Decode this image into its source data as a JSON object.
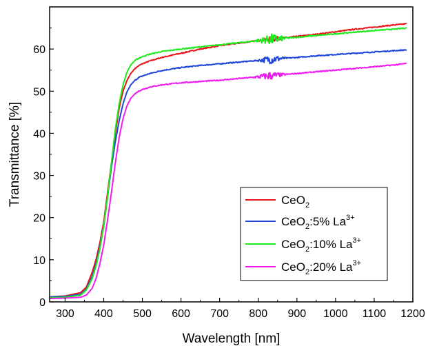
{
  "chart_data": {
    "type": "line",
    "title": "",
    "xlabel": "Wavelength [nm]",
    "ylabel": "Transmittance [%]",
    "xlim": [
      260,
      1200
    ],
    "ylim": [
      0,
      70
    ],
    "x_ticks": [
      300,
      400,
      500,
      600,
      700,
      800,
      900,
      1000,
      1100,
      1200
    ],
    "y_ticks": [
      0,
      10,
      20,
      30,
      40,
      50,
      60
    ],
    "grid": false,
    "legend_position": "bottom-right",
    "series": [
      {
        "name": "CeO2",
        "label_main": "CeO",
        "label_sub": "2",
        "label_rest": "",
        "label_sup": "",
        "color": "#e8161b",
        "noise": {
          "center": 835,
          "halfwidth": 35,
          "amplitude": 0.6
        },
        "points": [
          [
            260,
            1.2
          ],
          [
            300,
            1.4
          ],
          [
            340,
            2.2
          ],
          [
            355,
            3.5
          ],
          [
            370,
            7
          ],
          [
            380,
            10
          ],
          [
            390,
            14
          ],
          [
            400,
            19
          ],
          [
            410,
            26
          ],
          [
            420,
            33
          ],
          [
            430,
            40
          ],
          [
            440,
            46
          ],
          [
            450,
            50
          ],
          [
            460,
            52.5
          ],
          [
            470,
            54.2
          ],
          [
            480,
            55.3
          ],
          [
            490,
            56
          ],
          [
            500,
            56.5
          ],
          [
            520,
            57.2
          ],
          [
            550,
            58
          ],
          [
            600,
            59
          ],
          [
            650,
            60
          ],
          [
            700,
            60.8
          ],
          [
            750,
            61.4
          ],
          [
            800,
            62
          ],
          [
            850,
            62.5
          ],
          [
            900,
            63
          ],
          [
            950,
            63.5
          ],
          [
            1000,
            64.1
          ],
          [
            1050,
            64.7
          ],
          [
            1100,
            65.2
          ],
          [
            1150,
            65.7
          ],
          [
            1185,
            66
          ]
        ]
      },
      {
        "name": "CeO2:5% La3+",
        "label_main": "CeO",
        "label_sub": "2",
        "label_rest": ":5% La",
        "label_sup": "3+",
        "color": "#1f45d9",
        "noise": {
          "center": 835,
          "halfwidth": 40,
          "amplitude": 1.0
        },
        "points": [
          [
            260,
            1.2
          ],
          [
            300,
            1.3
          ],
          [
            340,
            1.8
          ],
          [
            355,
            3
          ],
          [
            370,
            6
          ],
          [
            380,
            9
          ],
          [
            390,
            13
          ],
          [
            400,
            18
          ],
          [
            410,
            25
          ],
          [
            420,
            32
          ],
          [
            430,
            38
          ],
          [
            440,
            43
          ],
          [
            450,
            47
          ],
          [
            460,
            49.8
          ],
          [
            470,
            51.5
          ],
          [
            480,
            52.5
          ],
          [
            490,
            53.2
          ],
          [
            500,
            53.6
          ],
          [
            520,
            54.2
          ],
          [
            550,
            54.9
          ],
          [
            600,
            55.6
          ],
          [
            650,
            56.1
          ],
          [
            700,
            56.5
          ],
          [
            750,
            56.9
          ],
          [
            800,
            57.3
          ],
          [
            850,
            57.7
          ],
          [
            900,
            58
          ],
          [
            950,
            58.4
          ],
          [
            1000,
            58.7
          ],
          [
            1050,
            59
          ],
          [
            1100,
            59.3
          ],
          [
            1150,
            59.6
          ],
          [
            1185,
            59.8
          ]
        ]
      },
      {
        "name": "CeO2:10% La3+",
        "label_main": "CeO",
        "label_sub": "2",
        "label_rest": ":10% La",
        "label_sup": "3+",
        "color": "#1cea1c",
        "noise": {
          "center": 835,
          "halfwidth": 45,
          "amplitude": 1.2
        },
        "points": [
          [
            260,
            1.0
          ],
          [
            300,
            1.1
          ],
          [
            340,
            1.6
          ],
          [
            355,
            2.8
          ],
          [
            370,
            5.5
          ],
          [
            380,
            8.5
          ],
          [
            390,
            12.5
          ],
          [
            400,
            18
          ],
          [
            410,
            25
          ],
          [
            420,
            33
          ],
          [
            430,
            41
          ],
          [
            440,
            47
          ],
          [
            450,
            51.5
          ],
          [
            460,
            54.5
          ],
          [
            470,
            56.2
          ],
          [
            480,
            57.2
          ],
          [
            490,
            57.8
          ],
          [
            500,
            58.2
          ],
          [
            520,
            58.8
          ],
          [
            550,
            59.4
          ],
          [
            600,
            60
          ],
          [
            650,
            60.5
          ],
          [
            700,
            61
          ],
          [
            750,
            61.5
          ],
          [
            800,
            62
          ],
          [
            850,
            62.4
          ],
          [
            900,
            62.8
          ],
          [
            950,
            63.2
          ],
          [
            1000,
            63.6
          ],
          [
            1050,
            64
          ],
          [
            1100,
            64.4
          ],
          [
            1150,
            64.7
          ],
          [
            1185,
            65
          ]
        ]
      },
      {
        "name": "CeO2:20% La3+",
        "label_main": "CeO",
        "label_sub": "2",
        "label_rest": ":20% La",
        "label_sup": "3+",
        "color": "#ee1cee",
        "noise": {
          "center": 830,
          "halfwidth": 45,
          "amplitude": 0.9
        },
        "points": [
          [
            260,
            0.8
          ],
          [
            300,
            0.9
          ],
          [
            340,
            1.1
          ],
          [
            355,
            1.6
          ],
          [
            370,
            3.2
          ],
          [
            380,
            5.5
          ],
          [
            390,
            9
          ],
          [
            400,
            13.5
          ],
          [
            410,
            19.5
          ],
          [
            420,
            26
          ],
          [
            430,
            33
          ],
          [
            440,
            39
          ],
          [
            450,
            43.5
          ],
          [
            460,
            46.5
          ],
          [
            470,
            48.3
          ],
          [
            480,
            49.3
          ],
          [
            490,
            50
          ],
          [
            500,
            50.4
          ],
          [
            520,
            51
          ],
          [
            550,
            51.5
          ],
          [
            600,
            52
          ],
          [
            650,
            52.3
          ],
          [
            700,
            52.6
          ],
          [
            750,
            53
          ],
          [
            800,
            53.4
          ],
          [
            850,
            53.8
          ],
          [
            900,
            54.2
          ],
          [
            950,
            54.6
          ],
          [
            1000,
            55
          ],
          [
            1050,
            55.4
          ],
          [
            1100,
            55.8
          ],
          [
            1150,
            56.2
          ],
          [
            1185,
            56.6
          ]
        ]
      }
    ]
  }
}
